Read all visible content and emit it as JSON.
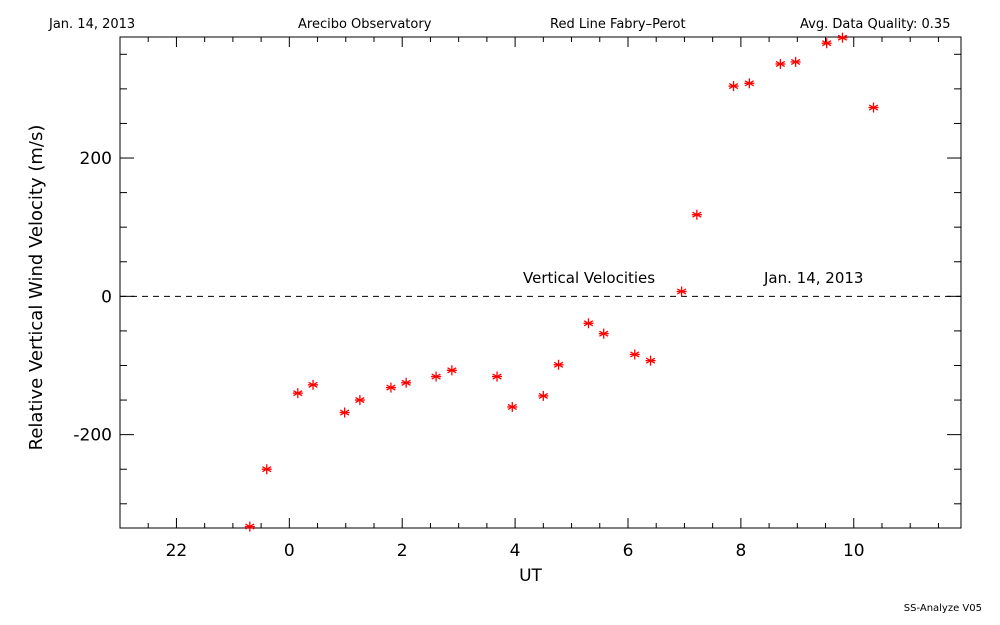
{
  "header": {
    "date": "Jan. 14, 2013",
    "site": "Arecibo Observatory",
    "instrument": "Red Line Fabry–Perot",
    "quality": "Avg. Data Quality: 0.35"
  },
  "footer": {
    "credit": "SS-Analyze V05"
  },
  "colors": {
    "marker": "#ff0000",
    "axes": "#000000"
  },
  "chart_data": {
    "type": "scatter",
    "title": "",
    "xlabel": "UT",
    "ylabel": "Relative Vertical Wind Velocity (m/s)",
    "xlim": [
      21.0,
      11.9
    ],
    "ylim": [
      -335,
      375
    ],
    "x_axis_wraps_at": 24,
    "xticks": [
      22,
      0,
      2,
      4,
      6,
      8,
      10
    ],
    "yticks": [
      -200,
      0,
      200
    ],
    "annotations": [
      "Vertical Velocities",
      "Jan. 14, 2013"
    ],
    "reference_line": {
      "y": 0,
      "style": "dashed"
    },
    "marker": "asterisk",
    "series": [
      {
        "x": [
          23.3,
          23.6,
          0.15,
          0.42,
          0.98,
          1.25,
          1.8,
          2.07,
          2.6,
          2.88,
          3.68,
          3.95,
          4.5,
          4.77,
          5.3,
          5.57,
          6.12,
          6.4,
          6.95,
          7.22,
          7.87,
          8.15,
          8.7,
          8.97,
          9.52,
          9.8,
          10.35
        ],
        "y": [
          -333,
          -250,
          -140,
          -128,
          -168,
          -150,
          -132,
          -125,
          -116,
          -107,
          -116,
          -160,
          -144,
          -99,
          -39,
          -54,
          -84,
          -93,
          7,
          118,
          304,
          308,
          336,
          339,
          366,
          374,
          273
        ]
      }
    ]
  }
}
